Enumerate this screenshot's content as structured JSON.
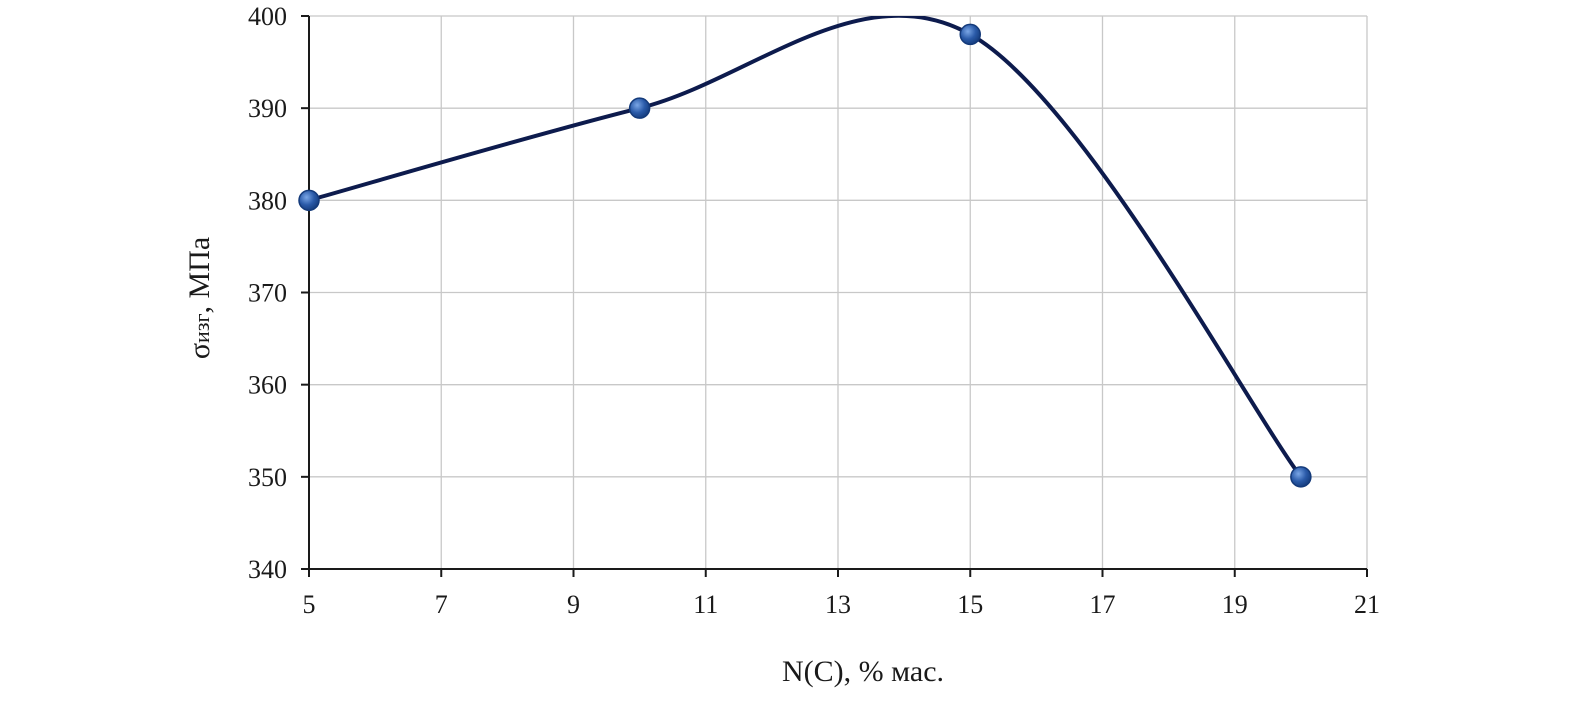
{
  "chart_data": {
    "type": "line",
    "smooth": true,
    "title": "",
    "xlabel": "N(C), % мас.",
    "ylabel": {
      "symbol": "σ",
      "subscript": "изг",
      "unit": ", МПа"
    },
    "x": [
      5,
      10,
      15,
      20
    ],
    "series": [
      {
        "values": [
          380,
          390,
          398,
          350
        ]
      }
    ],
    "xlim": [
      5,
      21
    ],
    "ylim": [
      340,
      400
    ],
    "xticks": [
      5,
      7,
      9,
      11,
      13,
      15,
      17,
      19,
      21
    ],
    "yticks": [
      340,
      350,
      360,
      370,
      380,
      390,
      400
    ],
    "grid": true,
    "legend": "none",
    "colors": {
      "line": "#0d1b4d",
      "marker": "#2a5aa8",
      "marker_edge": "#143a7a",
      "grid": "#c8c8c8",
      "axis": "#1a1a1a"
    }
  }
}
